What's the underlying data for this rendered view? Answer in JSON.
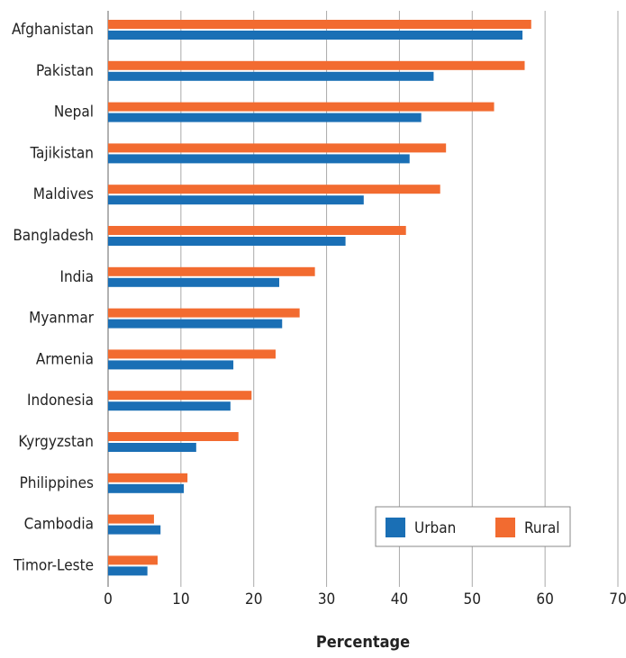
{
  "chart_data": {
    "type": "bar",
    "orientation": "horizontal",
    "x_label": "Percentage",
    "categories": [
      "Afghanistan",
      "Pakistan",
      "Nepal",
      "Tajikistan",
      "Maldives",
      "Bangladesh",
      "India",
      "Myanmar",
      "Armenia",
      "Indonesia",
      "Kyrgyzstan",
      "Philippines",
      "Cambodia",
      "Timor-Leste"
    ],
    "series": [
      {
        "name": "Urban",
        "color": "#1a6fb5",
        "values": [
          56.9,
          44.7,
          43.0,
          41.4,
          35.1,
          32.6,
          23.5,
          23.9,
          17.2,
          16.8,
          12.1,
          10.4,
          7.2,
          5.4
        ]
      },
      {
        "name": "Rural",
        "color": "#f26b30",
        "values": [
          58.1,
          57.2,
          53.0,
          46.4,
          45.6,
          40.9,
          28.4,
          26.3,
          23.0,
          19.7,
          17.9,
          10.9,
          6.3,
          6.8
        ]
      }
    ],
    "xlim": [
      0,
      70
    ],
    "xticks": [
      0,
      10,
      20,
      30,
      40,
      50,
      60,
      70
    ],
    "grid": true,
    "legend": "lower right"
  }
}
